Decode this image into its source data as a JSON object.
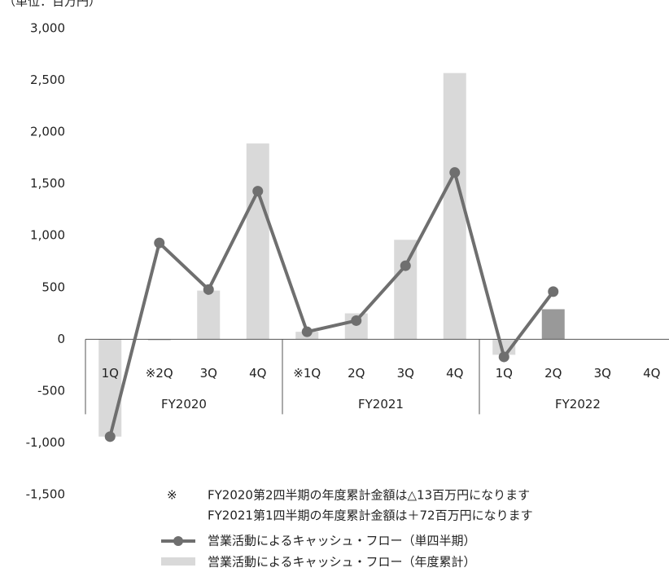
{
  "chart_data": {
    "type": "bar-line",
    "unit_label": "（単位：百万円）",
    "categories": [
      "1Q",
      "※2Q",
      "3Q",
      "4Q",
      "※1Q",
      "2Q",
      "3Q",
      "4Q",
      "1Q",
      "2Q",
      "3Q",
      "4Q"
    ],
    "groups": [
      "FY2020",
      "FY2021",
      "FY2022"
    ],
    "series": [
      {
        "name": "営業活動によるキャッシュ・フロー（年度累計）",
        "type": "bar",
        "color": "#d9d9d9",
        "colors": [
          "#d9d9d9",
          "#d9d9d9",
          "#d9d9d9",
          "#d9d9d9",
          "#d9d9d9",
          "#d9d9d9",
          "#d9d9d9",
          "#d9d9d9",
          "#d9d9d9",
          "#999999",
          "#d9d9d9",
          "#d9d9d9"
        ],
        "values": [
          -940,
          -13,
          470,
          1890,
          72,
          250,
          960,
          2570,
          -150,
          290,
          null,
          null
        ]
      },
      {
        "name": "営業活動によるキャッシュ・フロー（単四半期）",
        "type": "line",
        "color": "#6f6f6f",
        "values": [
          -940,
          930,
          480,
          1430,
          72,
          180,
          710,
          1610,
          -170,
          460,
          null,
          null
        ]
      }
    ],
    "ylim": [
      -1500,
      3000
    ],
    "yticks": [
      {
        "value": -1500,
        "label": "-1,500"
      },
      {
        "value": -1000,
        "label": "-1,000"
      },
      -500,
      0,
      500,
      {
        "value": 1000,
        "label": "1,000"
      },
      {
        "value": 1500,
        "label": "1,500"
      },
      {
        "value": 2000,
        "label": "2,000"
      },
      {
        "value": 2500,
        "label": "2,500"
      },
      {
        "value": 3000,
        "label": "3,000"
      }
    ],
    "note_mark": "※",
    "notes": [
      "FY2020第2四半期の年度累計金額は△13百万円になります",
      "FY2021第1四半期の年度累計金額は＋72百万円になります"
    ]
  }
}
